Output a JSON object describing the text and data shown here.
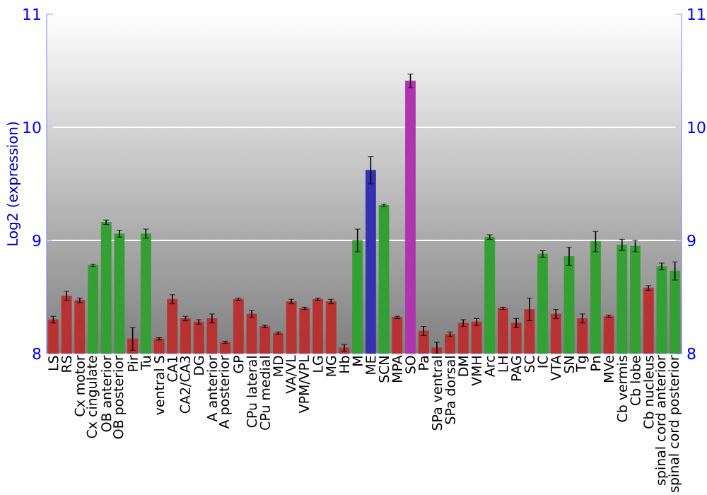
{
  "chart_data": {
    "type": "bar",
    "ylabel": "Log2 (expression)",
    "categories": [
      "LS",
      "RS",
      "Cx motor",
      "Cx cingulate",
      "OB anterior",
      "OB posterior",
      "Pir",
      "Tu",
      "ventral S",
      "CA1",
      "CA2/CA3",
      "DG",
      "A anterior",
      "A posterior",
      "GP",
      "CPu lateral",
      "CPu medial",
      "MD",
      "VA/VL",
      "VPM/VPL",
      "LG",
      "MG",
      "Hb",
      "M",
      "ME",
      "SCN",
      "MPA",
      "SO",
      "Pa",
      "SPa ventral",
      "SPa dorsal",
      "DM",
      "VMH",
      "Arc",
      "LH",
      "PAG",
      "SC",
      "IC",
      "VTA",
      "SN",
      "Tg",
      "Pn",
      "MVe",
      "Cb vermis",
      "Cb lobe",
      "Cb nucleus",
      "spinal cord anterior",
      "spinal cord posterior"
    ],
    "values": [
      8.3,
      8.51,
      8.47,
      8.78,
      9.16,
      9.06,
      8.13,
      9.06,
      8.13,
      8.48,
      8.31,
      8.28,
      8.31,
      8.1,
      8.48,
      8.35,
      8.24,
      8.18,
      8.46,
      8.4,
      8.48,
      8.46,
      8.05,
      9.0,
      9.62,
      9.31,
      8.32,
      10.41,
      8.2,
      8.05,
      8.17,
      8.27,
      8.28,
      9.03,
      8.4,
      8.27,
      8.39,
      8.88,
      8.35,
      8.86,
      8.31,
      8.99,
      8.33,
      8.96,
      8.95,
      8.58,
      8.77,
      8.73
    ],
    "errors": [
      0.03,
      0.04,
      0.02,
      0.01,
      0.02,
      0.03,
      0.1,
      0.04,
      0.01,
      0.04,
      0.02,
      0.02,
      0.04,
      0.01,
      0.01,
      0.03,
      0.01,
      0.01,
      0.02,
      0.01,
      0.01,
      0.02,
      0.03,
      0.1,
      0.12,
      0.01,
      0.01,
      0.06,
      0.04,
      0.05,
      0.02,
      0.03,
      0.03,
      0.02,
      0.01,
      0.04,
      0.1,
      0.03,
      0.04,
      0.08,
      0.04,
      0.09,
      0.01,
      0.05,
      0.05,
      0.02,
      0.03,
      0.08
    ],
    "colors": [
      "#b83232",
      "#b83232",
      "#b83232",
      "#33a033",
      "#33a033",
      "#33a033",
      "#b83232",
      "#33a033",
      "#b83232",
      "#b83232",
      "#b83232",
      "#b83232",
      "#b83232",
      "#b83232",
      "#b83232",
      "#b83232",
      "#b83232",
      "#b83232",
      "#b83232",
      "#b83232",
      "#b83232",
      "#b83232",
      "#b83232",
      "#33a033",
      "#3333b0",
      "#33a033",
      "#b83232",
      "#b033b0",
      "#b83232",
      "#b83232",
      "#b83232",
      "#b83232",
      "#b83232",
      "#33a033",
      "#b83232",
      "#b83232",
      "#b83232",
      "#33a033",
      "#b83232",
      "#33a033",
      "#b83232",
      "#33a033",
      "#b83232",
      "#33a033",
      "#33a033",
      "#b83232",
      "#33a033",
      "#33a033"
    ],
    "ylim": [
      8,
      11
    ],
    "yticks": [
      8,
      9,
      10,
      11
    ],
    "y2lim": [
      8,
      11
    ],
    "y2ticks": [
      8,
      9,
      10,
      11
    ],
    "grid": "y"
  }
}
